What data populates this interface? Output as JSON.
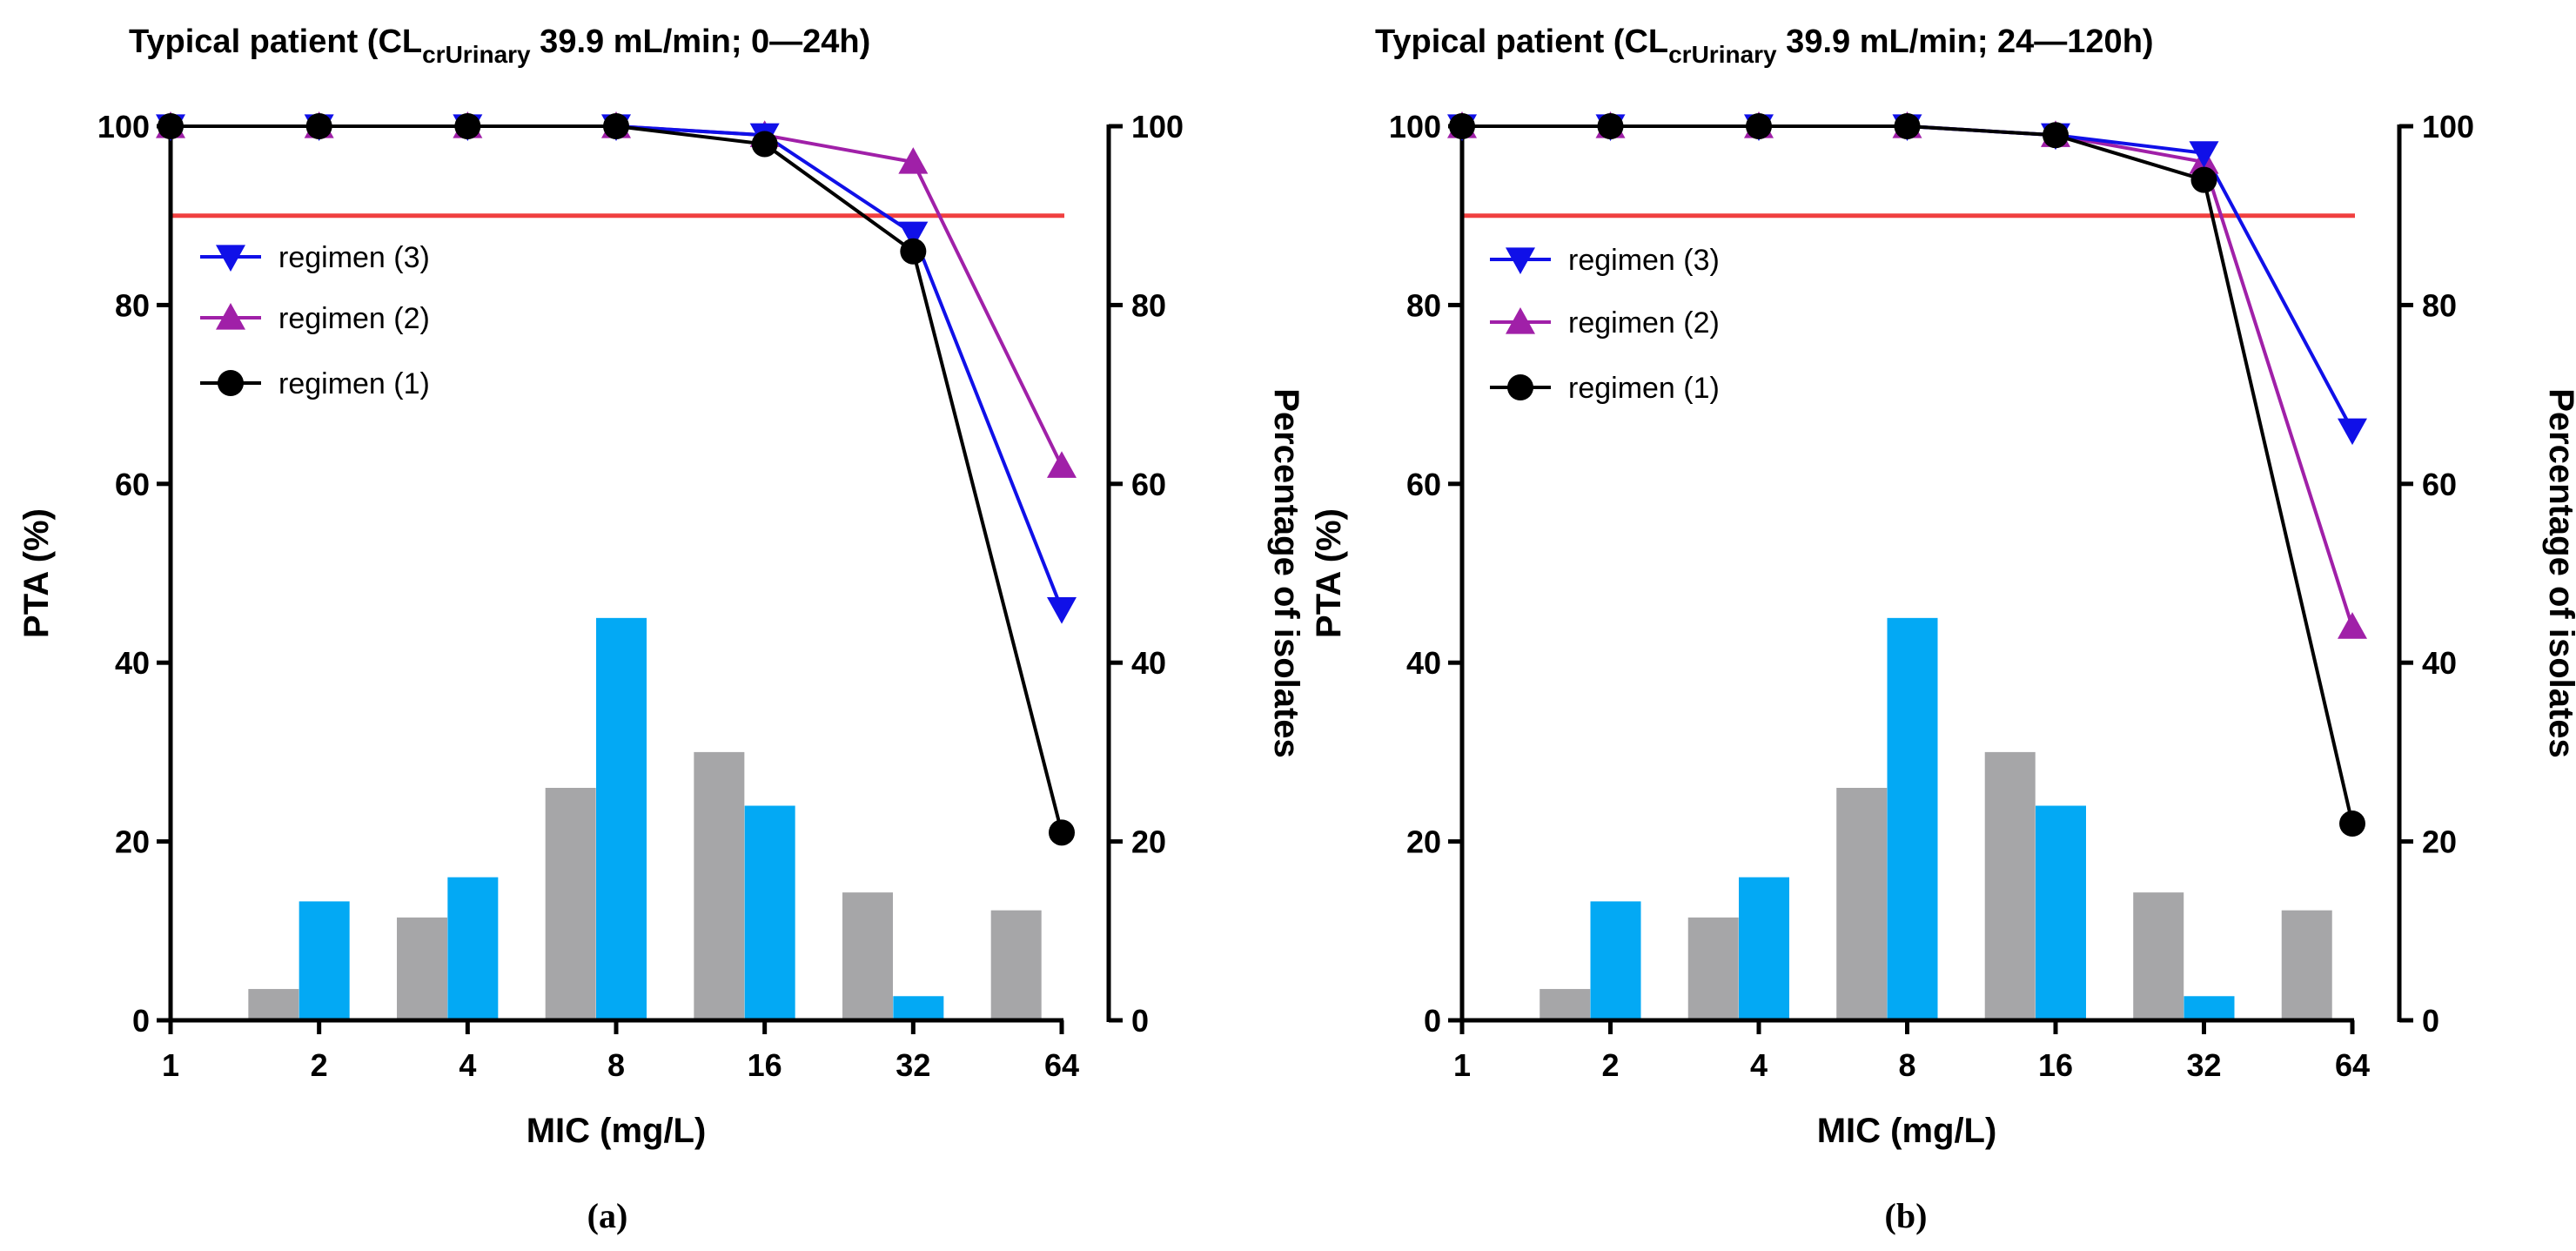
{
  "chart_data": [
    {
      "panel_label": "(a)",
      "type": "bar+line",
      "title": {
        "prefix": "Typical patient (CL",
        "subscript": "crUrinary",
        "suffix": " 39.9 mL/min; 0—24h)"
      },
      "xlabel": "MIC (mg/L)",
      "ylabel": "PTA (%)",
      "y2label": "Percentage of isolates",
      "x_ticks": [
        "1",
        "2",
        "4",
        "8",
        "16",
        "32",
        "64"
      ],
      "ylim": [
        0,
        100
      ],
      "y2lim": [
        0,
        100
      ],
      "y_ticks": [
        "0",
        "20",
        "40",
        "60",
        "80",
        "100"
      ],
      "y2_ticks": [
        "0",
        "20",
        "40",
        "60",
        "80",
        "100"
      ],
      "target_line": {
        "y": 90,
        "color": "#f04040"
      },
      "bar_series": [
        {
          "name": "gray bars",
          "color": "#a6a6a8",
          "offset": -0.33,
          "values": [
            null,
            3.5,
            11.5,
            26,
            30,
            14.3,
            12.3
          ]
        },
        {
          "name": "blue bars",
          "color": "#03a9f4",
          "offset": 0.0,
          "values": [
            null,
            13.3,
            16,
            45,
            24,
            2.7,
            null
          ]
        }
      ],
      "series": [
        {
          "name": "regimen (3)",
          "marker": "triangle-down",
          "color": "#1010e8",
          "values": [
            100,
            100,
            100,
            100,
            99,
            88,
            46
          ]
        },
        {
          "name": "regimen (2)",
          "marker": "triangle-up",
          "color": "#a020a8",
          "values": [
            100,
            100,
            100,
            100,
            99,
            96,
            62
          ]
        },
        {
          "name": "regimen (1)",
          "marker": "circle",
          "color": "#000000",
          "values": [
            100,
            100,
            100,
            100,
            98,
            86,
            21
          ]
        }
      ]
    },
    {
      "panel_label": "(b)",
      "type": "bar+line",
      "title": {
        "prefix": "Typical patient (CL",
        "subscript": "crUrinary",
        "suffix": " 39.9 mL/min; 24—120h)"
      },
      "xlabel": "MIC (mg/L)",
      "ylabel": "PTA (%)",
      "y2label": "Percentage of isolates",
      "x_ticks": [
        "1",
        "2",
        "4",
        "8",
        "16",
        "32",
        "64"
      ],
      "ylim": [
        0,
        100
      ],
      "y2lim": [
        0,
        100
      ],
      "y_ticks": [
        "0",
        "20",
        "40",
        "60",
        "80",
        "100"
      ],
      "y2_ticks": [
        "0",
        "20",
        "40",
        "60",
        "80",
        "100"
      ],
      "target_line": {
        "y": 90,
        "color": "#f04040"
      },
      "bar_series": [
        {
          "name": "gray bars",
          "color": "#a6a6a8",
          "offset": -0.33,
          "values": [
            null,
            3.5,
            11.5,
            26,
            30,
            14.3,
            12.3
          ]
        },
        {
          "name": "blue bars",
          "color": "#03a9f4",
          "offset": 0.0,
          "values": [
            null,
            13.3,
            16,
            45,
            24,
            2.7,
            null
          ]
        }
      ],
      "series": [
        {
          "name": "regimen (3)",
          "marker": "triangle-down",
          "color": "#1010e8",
          "values": [
            100,
            100,
            100,
            100,
            99,
            97,
            66
          ]
        },
        {
          "name": "regimen (2)",
          "marker": "triangle-up",
          "color": "#a020a8",
          "values": [
            100,
            100,
            100,
            100,
            99,
            96,
            44
          ]
        },
        {
          "name": "regimen (1)",
          "marker": "circle",
          "color": "#000000",
          "values": [
            100,
            100,
            100,
            100,
            99,
            94,
            22
          ]
        }
      ]
    }
  ]
}
